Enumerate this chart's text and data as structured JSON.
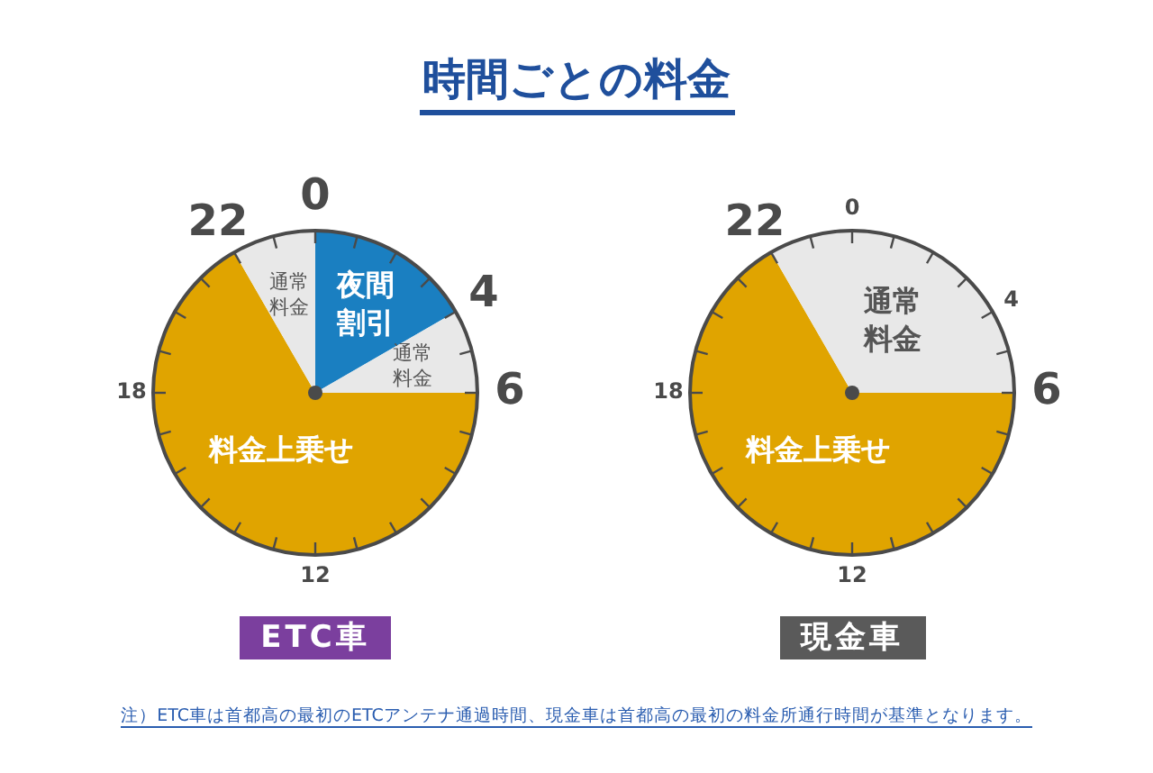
{
  "chart_data": [
    {
      "type": "other",
      "title": "時間ごとの料金",
      "annotations": [
        "注）ETC車は首都高の最初のETCアンテナ通過時間、現金車は首都高の最初の料金所通行時間が基準となります。"
      ]
    },
    {
      "type": "pie",
      "title": "ETC車",
      "categories": [
        "夜間割引",
        "通常料金",
        "料金上乗せ",
        "通常料金"
      ],
      "values": [
        16.67,
        8.33,
        66.67,
        8.33
      ],
      "colors": [
        "#1a7fc1",
        "#e8e8e8",
        "#e0a400",
        "#e8e8e8"
      ],
      "annotations": [
        "0",
        "4",
        "6",
        "12",
        "18",
        "22"
      ]
    },
    {
      "type": "pie",
      "title": "現金車",
      "categories": [
        "料金上乗せ",
        "通常料金"
      ],
      "values": [
        66.67,
        33.33
      ],
      "colors": [
        "#e0a400",
        "#e8e8e8"
      ],
      "annotations": [
        "0",
        "4",
        "6",
        "12",
        "18",
        "22"
      ]
    }
  ]
}
